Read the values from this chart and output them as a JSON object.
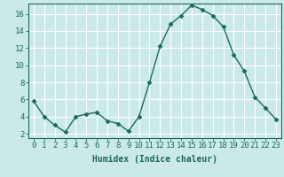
{
  "x": [
    0,
    1,
    2,
    3,
    4,
    5,
    6,
    7,
    8,
    9,
    10,
    11,
    12,
    13,
    14,
    15,
    16,
    17,
    18,
    19,
    20,
    21,
    22,
    23
  ],
  "y": [
    5.8,
    4.0,
    3.0,
    2.2,
    4.0,
    4.3,
    4.5,
    3.5,
    3.2,
    2.3,
    4.0,
    8.0,
    12.2,
    14.8,
    15.8,
    17.0,
    16.5,
    15.8,
    14.5,
    11.2,
    9.3,
    6.3,
    5.0,
    3.7
  ],
  "line_color": "#1a6b5a",
  "marker": "D",
  "marker_size": 2.5,
  "bg_color": "#cce9e9",
  "grid_color": "#ffffff",
  "xlabel": "Humidex (Indice chaleur)",
  "xlim": [
    -0.5,
    23.5
  ],
  "ylim": [
    1.5,
    17.2
  ],
  "yticks": [
    2,
    4,
    6,
    8,
    10,
    12,
    14,
    16
  ],
  "xticks": [
    0,
    1,
    2,
    3,
    4,
    5,
    6,
    7,
    8,
    9,
    10,
    11,
    12,
    13,
    14,
    15,
    16,
    17,
    18,
    19,
    20,
    21,
    22,
    23
  ],
  "tick_color": "#1a6b5a",
  "label_fontsize": 7,
  "tick_fontsize": 6.5
}
